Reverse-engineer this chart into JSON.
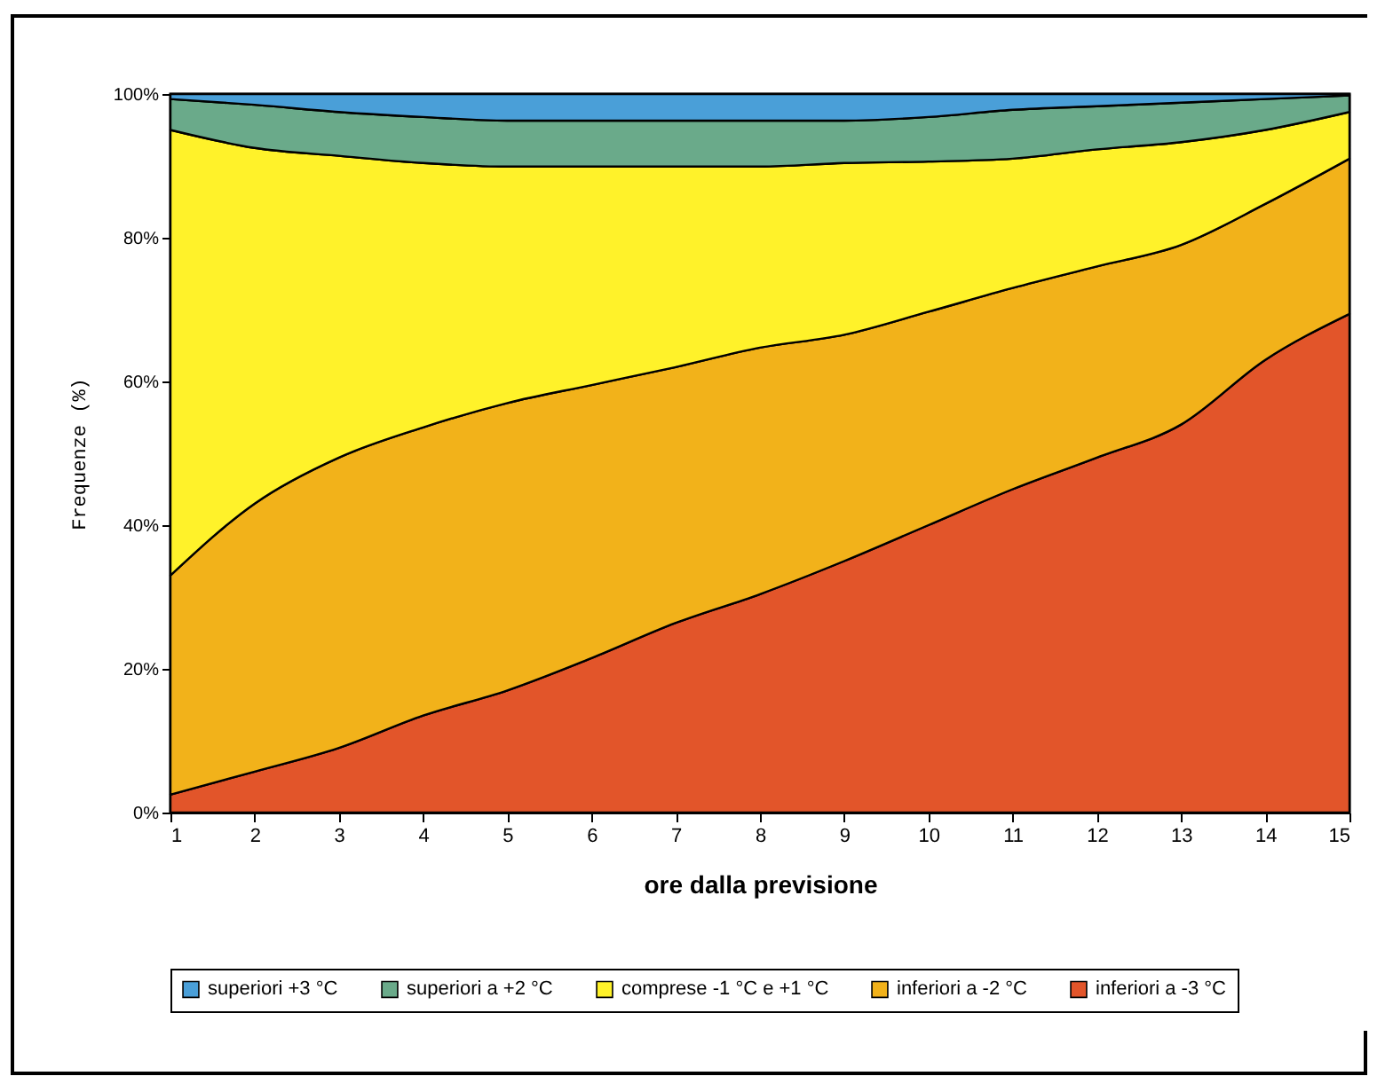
{
  "chart_data": {
    "type": "area",
    "stacked": true,
    "xlabel": "ore dalla previsione",
    "ylabel": "Frequenze (%)",
    "x": [
      1,
      2,
      3,
      4,
      5,
      6,
      7,
      8,
      9,
      10,
      11,
      12,
      13,
      14,
      15
    ],
    "xlim": [
      1,
      15
    ],
    "xticks": [
      1,
      2,
      3,
      4,
      5,
      6,
      7,
      8,
      9,
      10,
      11,
      12,
      13,
      14,
      15
    ],
    "ylim": [
      0,
      100
    ],
    "yticks": [
      {
        "value": 0,
        "label": "0%"
      },
      {
        "value": 20,
        "label": "20%"
      },
      {
        "value": 40,
        "label": "40%"
      },
      {
        "value": 60,
        "label": "60%"
      },
      {
        "value": 80,
        "label": "80%"
      },
      {
        "value": 100,
        "label": "100%"
      }
    ],
    "grid": false,
    "legend": "bottom",
    "series": [
      {
        "name": "inferiori a -3 °C",
        "color": "#e2552a",
        "values": [
          2.5,
          5.7,
          9,
          13.5,
          17,
          21.5,
          26.4,
          30.4,
          35,
          40,
          45,
          49.4,
          54,
          63,
          69.4
        ]
      },
      {
        "name": "inferiori a -2 °C",
        "color": "#f2b21a",
        "values": [
          30.5,
          37.3,
          40.4,
          40.1,
          40,
          38,
          35.6,
          34.3,
          31.5,
          29.7,
          28,
          26.6,
          25,
          21.7,
          21.6
        ]
      },
      {
        "name": "comprese -1 °C e +1 °C",
        "color": "#fff22a",
        "values": [
          62,
          49.5,
          42,
          36.8,
          32.9,
          30.4,
          27.9,
          25.2,
          23.9,
          20.9,
          18,
          16.3,
          14.3,
          10.3,
          6.5
        ]
      },
      {
        "name": "superiori a +2 °C",
        "color": "#6aaa8a",
        "values": [
          4.3,
          6,
          6.1,
          6.4,
          6.4,
          6.4,
          6.4,
          6.4,
          5.9,
          6.2,
          6.8,
          6,
          5.5,
          4.3,
          2.3
        ]
      },
      {
        "name": "superiori +3 °C",
        "color": "#4a9fd8",
        "values": [
          0.7,
          1.5,
          2.5,
          3.2,
          3.7,
          3.7,
          3.7,
          3.7,
          3.7,
          3.2,
          2.2,
          1.7,
          1.2,
          0.7,
          0.2
        ]
      }
    ]
  }
}
